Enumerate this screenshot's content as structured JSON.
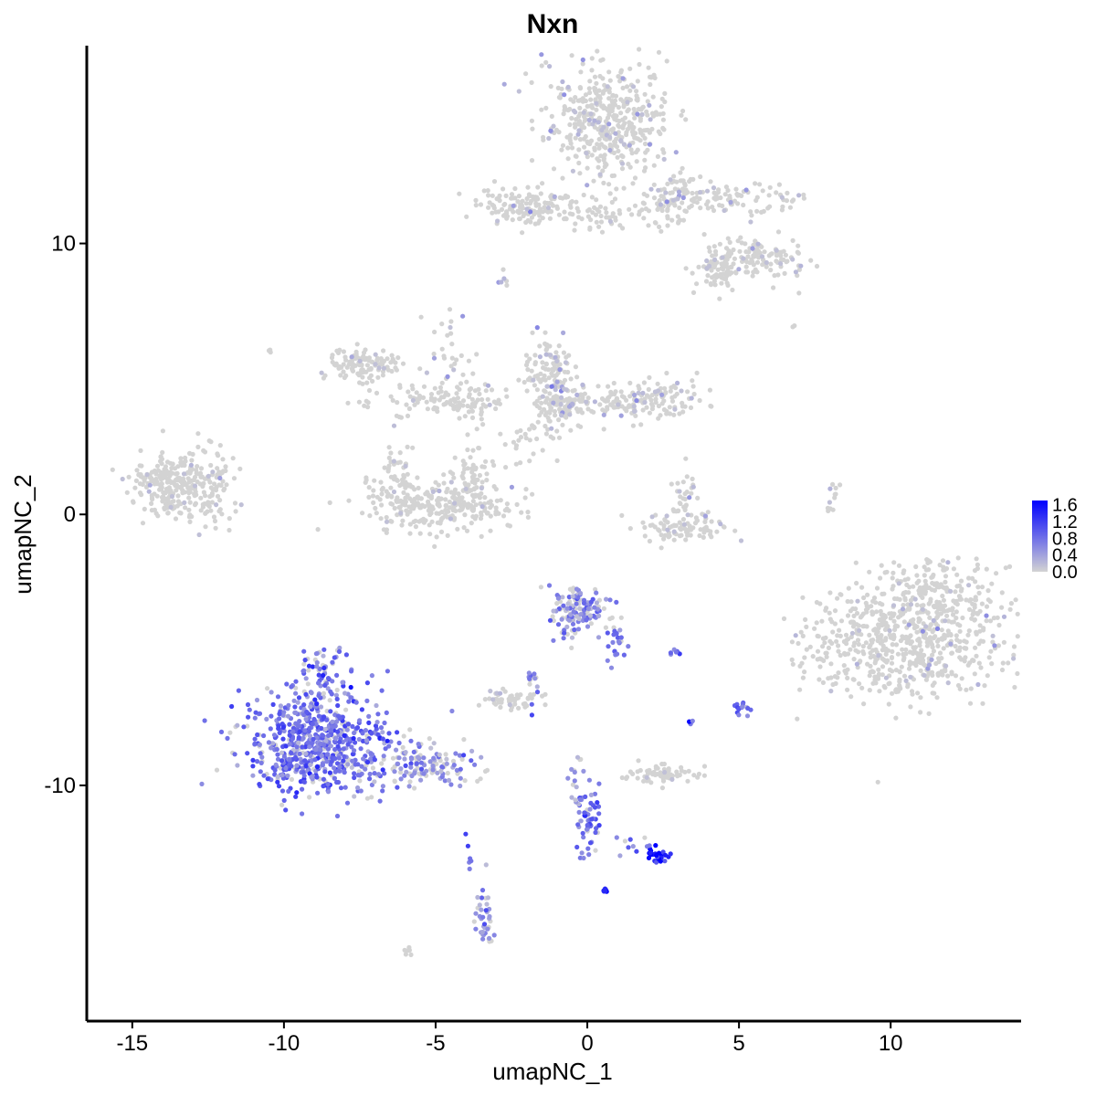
{
  "chart_data": {
    "type": "scatter",
    "title": "Nxn",
    "xlabel": "umapNC_1",
    "ylabel": "umapNC_2",
    "xlim": [
      -16.5,
      14.3
    ],
    "ylim": [
      -18.7,
      17.3
    ],
    "x_ticks": [
      -15,
      -10,
      -5,
      0,
      5,
      10
    ],
    "x_tick_labels": [
      "-15",
      "-10",
      "-5",
      "0",
      "5",
      "10"
    ],
    "y_ticks": [
      -10,
      0,
      10
    ],
    "y_tick_labels": [
      "-10",
      "0",
      "10"
    ],
    "grid": false,
    "legend": {
      "placement": "right",
      "labels": [
        "1.6",
        "1.2",
        "0.8",
        "0.4",
        "0.0"
      ],
      "values": [
        1.6,
        1.2,
        0.8,
        0.4,
        0.0
      ],
      "range": [
        0,
        1.7
      ]
    },
    "colors": {
      "low": "#d3d3d3",
      "high": "#0000ff"
    },
    "clusters": [
      {
        "cx": 0.6,
        "cy": 14.5,
        "sx": 1.0,
        "sy": 1.1,
        "n": 450,
        "expr": 0.1,
        "frac": 0.1
      },
      {
        "cx": -2.0,
        "cy": 11.4,
        "sx": 0.8,
        "sy": 0.35,
        "n": 140,
        "expr": 0.1,
        "frac": 0.05
      },
      {
        "cx": 0.5,
        "cy": 11.0,
        "sx": 1.3,
        "sy": 0.3,
        "n": 70,
        "expr": 0.2,
        "frac": 0.08
      },
      {
        "cx": 4.5,
        "cy": 11.6,
        "sx": 1.2,
        "sy": 0.35,
        "n": 100,
        "expr": 0.1,
        "frac": 0.07
      },
      {
        "cx": 5.6,
        "cy": 9.5,
        "sx": 0.8,
        "sy": 0.4,
        "n": 120,
        "expr": 0.1,
        "frac": 0.08
      },
      {
        "cx": 4.3,
        "cy": 9.0,
        "sx": 0.35,
        "sy": 0.4,
        "n": 70,
        "expr": 0.1,
        "frac": 0.05
      },
      {
        "cx": 2.9,
        "cy": 11.8,
        "sx": 0.4,
        "sy": 0.5,
        "n": 60,
        "expr": 0.1,
        "frac": 0.05
      },
      {
        "cx": -7.3,
        "cy": 5.5,
        "sx": 0.6,
        "sy": 0.3,
        "n": 120,
        "expr": 0.05,
        "frac": 0.02
      },
      {
        "cx": -5.5,
        "cy": 4.2,
        "sx": 1.0,
        "sy": 0.3,
        "n": 80,
        "expr": 0.05,
        "frac": 0.02
      },
      {
        "cx": -3.5,
        "cy": 4.0,
        "sx": 0.6,
        "sy": 0.4,
        "n": 40,
        "expr": 0.1,
        "frac": 0.05
      },
      {
        "cx": -4.5,
        "cy": 6.0,
        "sx": 0.4,
        "sy": 0.7,
        "n": 30,
        "expr": 0.2,
        "frac": 0.15
      },
      {
        "cx": -1.2,
        "cy": 5.2,
        "sx": 0.4,
        "sy": 0.6,
        "n": 110,
        "expr": 0.3,
        "frac": 0.2
      },
      {
        "cx": -0.8,
        "cy": 4.0,
        "sx": 0.5,
        "sy": 0.4,
        "n": 100,
        "expr": 0.2,
        "frac": 0.15
      },
      {
        "cx": 1.6,
        "cy": 4.2,
        "sx": 1.0,
        "sy": 0.35,
        "n": 160,
        "expr": 0.15,
        "frac": 0.1
      },
      {
        "cx": -1.8,
        "cy": 2.6,
        "sx": 0.5,
        "sy": 0.5,
        "n": 30,
        "expr": 0.05,
        "frac": 0.03
      },
      {
        "cx": -4.8,
        "cy": 0.3,
        "sx": 1.2,
        "sy": 0.5,
        "n": 260,
        "expr": 0.05,
        "frac": 0.02
      },
      {
        "cx": -6.2,
        "cy": 1.0,
        "sx": 0.3,
        "sy": 0.6,
        "n": 60,
        "expr": 0.05,
        "frac": 0.03
      },
      {
        "cx": -3.8,
        "cy": 1.4,
        "sx": 0.3,
        "sy": 0.6,
        "n": 60,
        "expr": 0.05,
        "frac": 0.03
      },
      {
        "cx": -13.7,
        "cy": 1.1,
        "sx": 0.7,
        "sy": 0.6,
        "n": 260,
        "expr": 0.1,
        "frac": 0.05
      },
      {
        "cx": -12.2,
        "cy": 0.9,
        "sx": 0.4,
        "sy": 0.7,
        "n": 60,
        "expr": 0.05,
        "frac": 0.02
      },
      {
        "cx": 3.0,
        "cy": -0.5,
        "sx": 0.8,
        "sy": 0.3,
        "n": 90,
        "expr": 0.1,
        "frac": 0.06
      },
      {
        "cx": 3.2,
        "cy": 0.7,
        "sx": 0.2,
        "sy": 0.6,
        "n": 30,
        "expr": 0.2,
        "frac": 0.15
      },
      {
        "cx": 10.5,
        "cy": -4.6,
        "sx": 1.6,
        "sy": 1.1,
        "n": 650,
        "expr": 0.08,
        "frac": 0.05
      },
      {
        "cx": 11.5,
        "cy": -2.9,
        "sx": 1.0,
        "sy": 0.6,
        "n": 120,
        "expr": 0.05,
        "frac": 0.03
      },
      {
        "cx": -0.3,
        "cy": -3.6,
        "sx": 0.5,
        "sy": 0.5,
        "n": 140,
        "expr": 0.6,
        "frac": 0.6
      },
      {
        "cx": 1.0,
        "cy": -4.8,
        "sx": 0.2,
        "sy": 0.4,
        "n": 20,
        "expr": 0.8,
        "frac": 0.9
      },
      {
        "cx": -9.0,
        "cy": -8.4,
        "sx": 1.2,
        "sy": 0.9,
        "n": 650,
        "expr": 0.8,
        "frac": 0.85
      },
      {
        "cx": -8.7,
        "cy": -5.9,
        "sx": 0.4,
        "sy": 0.5,
        "n": 70,
        "expr": 0.8,
        "frac": 0.8
      },
      {
        "cx": -5.4,
        "cy": -9.3,
        "sx": 0.9,
        "sy": 0.4,
        "n": 140,
        "expr": 0.6,
        "frac": 0.6
      },
      {
        "cx": -2.5,
        "cy": -6.9,
        "sx": 0.4,
        "sy": 0.2,
        "n": 50,
        "expr": 0.1,
        "frac": 0.05
      },
      {
        "cx": -1.8,
        "cy": -6.3,
        "sx": 0.15,
        "sy": 0.4,
        "n": 15,
        "expr": 0.8,
        "frac": 0.8
      },
      {
        "cx": 2.3,
        "cy": -9.6,
        "sx": 0.6,
        "sy": 0.2,
        "n": 60,
        "expr": 0.15,
        "frac": 0.05
      },
      {
        "cx": 0.0,
        "cy": -11.4,
        "sx": 0.2,
        "sy": 0.6,
        "n": 60,
        "expr": 0.8,
        "frac": 0.85
      },
      {
        "cx": -0.3,
        "cy": -9.8,
        "sx": 0.15,
        "sy": 0.5,
        "n": 15,
        "expr": 0.4,
        "frac": 0.5
      },
      {
        "cx": 2.3,
        "cy": -12.6,
        "sx": 0.2,
        "sy": 0.15,
        "n": 25,
        "expr": 1.5,
        "frac": 1.0
      },
      {
        "cx": 1.6,
        "cy": -12.1,
        "sx": 0.4,
        "sy": 0.2,
        "n": 10,
        "expr": 0.7,
        "frac": 0.8
      },
      {
        "cx": 0.6,
        "cy": -13.9,
        "sx": 0.05,
        "sy": 0.05,
        "n": 6,
        "expr": 1.5,
        "frac": 1.0
      },
      {
        "cx": -3.4,
        "cy": -14.8,
        "sx": 0.15,
        "sy": 0.7,
        "n": 40,
        "expr": 0.6,
        "frac": 0.8
      },
      {
        "cx": -3.9,
        "cy": -12.4,
        "sx": 0.05,
        "sy": 0.5,
        "n": 6,
        "expr": 0.8,
        "frac": 1.0
      },
      {
        "cx": 5.0,
        "cy": -7.2,
        "sx": 0.2,
        "sy": 0.2,
        "n": 14,
        "expr": 0.8,
        "frac": 1.0
      },
      {
        "cx": 3.4,
        "cy": -7.6,
        "sx": 0.05,
        "sy": 0.1,
        "n": 5,
        "expr": 1.2,
        "frac": 1.0
      },
      {
        "cx": 2.9,
        "cy": -5.1,
        "sx": 0.1,
        "sy": 0.05,
        "n": 6,
        "expr": 0.8,
        "frac": 1.0
      },
      {
        "cx": 8.2,
        "cy": 0.4,
        "sx": 0.15,
        "sy": 0.4,
        "n": 12,
        "expr": 0.1,
        "frac": 0.1
      },
      {
        "cx": -6.0,
        "cy": -16.2,
        "sx": 0.15,
        "sy": 0.1,
        "n": 6,
        "expr": 0.0,
        "frac": 0.0
      },
      {
        "cx": -2.8,
        "cy": 8.6,
        "sx": 0.1,
        "sy": 0.15,
        "n": 6,
        "expr": 0.3,
        "frac": 0.5
      },
      {
        "cx": -10.5,
        "cy": 6.0,
        "sx": 0.05,
        "sy": 0.05,
        "n": 3,
        "expr": 0.0,
        "frac": 0.0
      },
      {
        "cx": 6.8,
        "cy": 7.0,
        "sx": 0.05,
        "sy": 0.05,
        "n": 2,
        "expr": 0.0,
        "frac": 0.0
      }
    ]
  }
}
